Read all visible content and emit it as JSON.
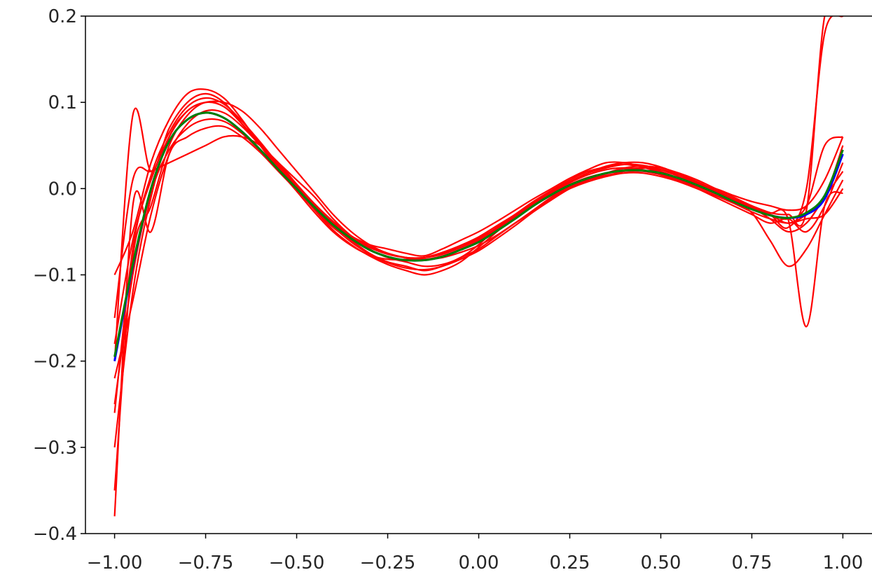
{
  "chart_data": {
    "type": "line",
    "title": "",
    "xlabel": "",
    "ylabel": "",
    "xlim": [
      -1.08,
      1.08
    ],
    "ylim": [
      -0.4,
      0.2
    ],
    "x_ticks": [
      -1.0,
      -0.75,
      -0.5,
      -0.25,
      0.0,
      0.25,
      0.5,
      0.75,
      1.0
    ],
    "x_tick_labels": [
      "−1.00",
      "−0.75",
      "−0.50",
      "−0.25",
      "0.00",
      "0.25",
      "0.50",
      "0.75",
      "1.00"
    ],
    "y_ticks": [
      -0.4,
      -0.3,
      -0.2,
      -0.1,
      0.0,
      0.1,
      0.2
    ],
    "y_tick_labels": [
      "−0.4",
      "−0.3",
      "−0.2",
      "−0.1",
      "0.0",
      "0.1",
      "0.2"
    ],
    "grid": false,
    "legend": "none",
    "x": [
      -1.0,
      -0.95,
      -0.9,
      -0.85,
      -0.8,
      -0.75,
      -0.7,
      -0.65,
      -0.6,
      -0.55,
      -0.5,
      -0.45,
      -0.4,
      -0.35,
      -0.3,
      -0.25,
      -0.2,
      -0.15,
      -0.1,
      -0.05,
      0.0,
      0.05,
      0.1,
      0.15,
      0.2,
      0.25,
      0.3,
      0.35,
      0.4,
      0.45,
      0.5,
      0.55,
      0.6,
      0.65,
      0.7,
      0.75,
      0.8,
      0.85,
      0.9,
      0.95,
      1.0
    ],
    "main_series": {
      "color": "#0000ff",
      "values": [
        -0.2,
        -0.09,
        0.0,
        0.055,
        0.08,
        0.088,
        0.082,
        0.066,
        0.045,
        0.022,
        0.0,
        -0.022,
        -0.042,
        -0.058,
        -0.071,
        -0.079,
        -0.083,
        -0.083,
        -0.079,
        -0.071,
        -0.062,
        -0.049,
        -0.035,
        -0.02,
        -0.007,
        0.004,
        0.012,
        0.018,
        0.021,
        0.021,
        0.018,
        0.012,
        0.004,
        -0.005,
        -0.015,
        -0.024,
        -0.031,
        -0.034,
        -0.03,
        -0.012,
        0.04
      ]
    },
    "fit_series": {
      "color": "#008000",
      "values": [
        -0.195,
        -0.088,
        0.0,
        0.055,
        0.08,
        0.088,
        0.082,
        0.066,
        0.045,
        0.022,
        0.0,
        -0.022,
        -0.042,
        -0.058,
        -0.071,
        -0.079,
        -0.083,
        -0.083,
        -0.079,
        -0.071,
        -0.062,
        -0.049,
        -0.035,
        -0.02,
        -0.007,
        0.004,
        0.012,
        0.018,
        0.021,
        0.021,
        0.018,
        0.012,
        0.004,
        -0.005,
        -0.015,
        -0.024,
        -0.031,
        -0.034,
        -0.028,
        -0.008,
        0.045
      ]
    },
    "noisy_series_color": "#ff0000",
    "noisy_series": [
      {
        "values": [
          -0.2,
          0.085,
          0.02,
          0.07,
          0.1,
          0.11,
          0.1,
          0.075,
          0.05,
          0.03,
          0.005,
          -0.02,
          -0.04,
          -0.055,
          -0.065,
          -0.07,
          -0.075,
          -0.078,
          -0.07,
          -0.06,
          -0.05,
          -0.038,
          -0.025,
          -0.012,
          0.0,
          0.012,
          0.022,
          0.03,
          0.03,
          0.025,
          0.018,
          0.01,
          0.002,
          -0.006,
          -0.014,
          -0.02,
          -0.03,
          -0.04,
          -0.03,
          -0.01,
          0.05
        ]
      },
      {
        "values": [
          -0.38,
          -0.02,
          -0.05,
          0.04,
          0.06,
          0.07,
          0.072,
          0.06,
          0.042,
          0.02,
          -0.002,
          -0.024,
          -0.045,
          -0.06,
          -0.075,
          -0.085,
          -0.09,
          -0.095,
          -0.09,
          -0.08,
          -0.07,
          -0.055,
          -0.04,
          -0.025,
          -0.01,
          0.0,
          0.008,
          0.014,
          0.018,
          0.018,
          0.014,
          0.008,
          0.0,
          -0.01,
          -0.02,
          -0.03,
          -0.04,
          -0.035,
          -0.05,
          -0.02,
          0.03
        ]
      },
      {
        "values": [
          -0.15,
          0.01,
          0.02,
          0.03,
          0.04,
          0.05,
          0.06,
          0.06,
          0.05,
          0.03,
          0.01,
          -0.01,
          -0.035,
          -0.055,
          -0.07,
          -0.08,
          -0.085,
          -0.09,
          -0.088,
          -0.08,
          -0.065,
          -0.045,
          -0.03,
          -0.015,
          -0.002,
          0.01,
          0.02,
          0.025,
          0.028,
          0.025,
          0.02,
          0.012,
          0.005,
          0.0,
          -0.008,
          -0.015,
          -0.02,
          -0.025,
          -0.02,
          0.01,
          0.06
        ]
      },
      {
        "values": [
          -0.3,
          -0.12,
          -0.01,
          0.06,
          0.09,
          0.1,
          0.095,
          0.075,
          0.05,
          0.025,
          0.0,
          -0.025,
          -0.048,
          -0.065,
          -0.078,
          -0.088,
          -0.095,
          -0.1,
          -0.095,
          -0.085,
          -0.068,
          -0.05,
          -0.033,
          -0.018,
          -0.005,
          0.005,
          0.013,
          0.018,
          0.02,
          0.02,
          0.016,
          0.01,
          0.003,
          -0.006,
          -0.016,
          -0.028,
          -0.06,
          -0.09,
          -0.07,
          -0.03,
          0.01
        ]
      },
      {
        "values": [
          -0.1,
          -0.05,
          0.03,
          0.08,
          0.11,
          0.115,
          0.105,
          0.08,
          0.05,
          0.022,
          -0.003,
          -0.028,
          -0.05,
          -0.066,
          -0.077,
          -0.082,
          -0.082,
          -0.08,
          -0.074,
          -0.066,
          -0.057,
          -0.046,
          -0.033,
          -0.02,
          -0.008,
          0.002,
          0.01,
          0.015,
          0.02,
          0.024,
          0.022,
          0.016,
          0.006,
          -0.004,
          -0.013,
          -0.022,
          -0.03,
          -0.045,
          0.0,
          0.18,
          0.2
        ]
      },
      {
        "values": [
          -0.35,
          -0.08,
          -0.02,
          0.05,
          0.085,
          0.1,
          0.095,
          0.075,
          0.052,
          0.028,
          0.005,
          -0.018,
          -0.038,
          -0.055,
          -0.068,
          -0.076,
          -0.08,
          -0.082,
          -0.08,
          -0.074,
          -0.066,
          -0.054,
          -0.04,
          -0.026,
          -0.012,
          0.0,
          0.01,
          0.018,
          0.024,
          0.026,
          0.024,
          0.018,
          0.01,
          0.0,
          -0.01,
          -0.02,
          -0.028,
          -0.036,
          -0.16,
          -0.02,
          -0.005
        ]
      },
      {
        "values": [
          -0.22,
          -0.13,
          -0.03,
          0.04,
          0.075,
          0.09,
          0.088,
          0.072,
          0.05,
          0.026,
          0.002,
          -0.02,
          -0.04,
          -0.056,
          -0.068,
          -0.076,
          -0.08,
          -0.08,
          -0.076,
          -0.068,
          -0.058,
          -0.045,
          -0.03,
          -0.016,
          -0.003,
          0.008,
          0.018,
          0.024,
          0.028,
          0.027,
          0.022,
          0.014,
          0.006,
          -0.003,
          -0.012,
          -0.02,
          -0.028,
          -0.03,
          -0.025,
          0.2,
          0.2
        ]
      },
      {
        "values": [
          -0.18,
          -0.06,
          0.01,
          0.06,
          0.09,
          0.1,
          0.1,
          0.09,
          0.07,
          0.045,
          0.02,
          -0.005,
          -0.03,
          -0.05,
          -0.065,
          -0.075,
          -0.08,
          -0.082,
          -0.078,
          -0.07,
          -0.06,
          -0.047,
          -0.032,
          -0.018,
          -0.004,
          0.008,
          0.018,
          0.026,
          0.03,
          0.03,
          0.025,
          0.017,
          0.008,
          -0.002,
          -0.012,
          -0.022,
          -0.035,
          -0.05,
          -0.04,
          -0.01,
          0.02
        ]
      },
      {
        "values": [
          -0.25,
          -0.1,
          -0.005,
          0.045,
          0.07,
          0.08,
          0.078,
          0.064,
          0.044,
          0.022,
          0.0,
          -0.023,
          -0.044,
          -0.062,
          -0.076,
          -0.086,
          -0.092,
          -0.094,
          -0.09,
          -0.082,
          -0.072,
          -0.058,
          -0.043,
          -0.027,
          -0.013,
          0.0,
          0.01,
          0.017,
          0.022,
          0.024,
          0.022,
          0.016,
          0.008,
          -0.002,
          -0.012,
          -0.022,
          -0.03,
          -0.035,
          -0.02,
          0.05,
          0.06
        ]
      },
      {
        "values": [
          -0.26,
          -0.07,
          0.015,
          0.065,
          0.095,
          0.105,
          0.098,
          0.078,
          0.054,
          0.028,
          0.003,
          -0.02,
          -0.04,
          -0.055,
          -0.067,
          -0.075,
          -0.08,
          -0.08,
          -0.075,
          -0.066,
          -0.056,
          -0.043,
          -0.03,
          -0.016,
          -0.004,
          0.007,
          0.016,
          0.022,
          0.024,
          0.022,
          0.016,
          0.008,
          0.0,
          -0.008,
          -0.017,
          -0.027,
          -0.035,
          -0.04,
          -0.035,
          -0.03,
          -0.0
        ]
      }
    ]
  }
}
